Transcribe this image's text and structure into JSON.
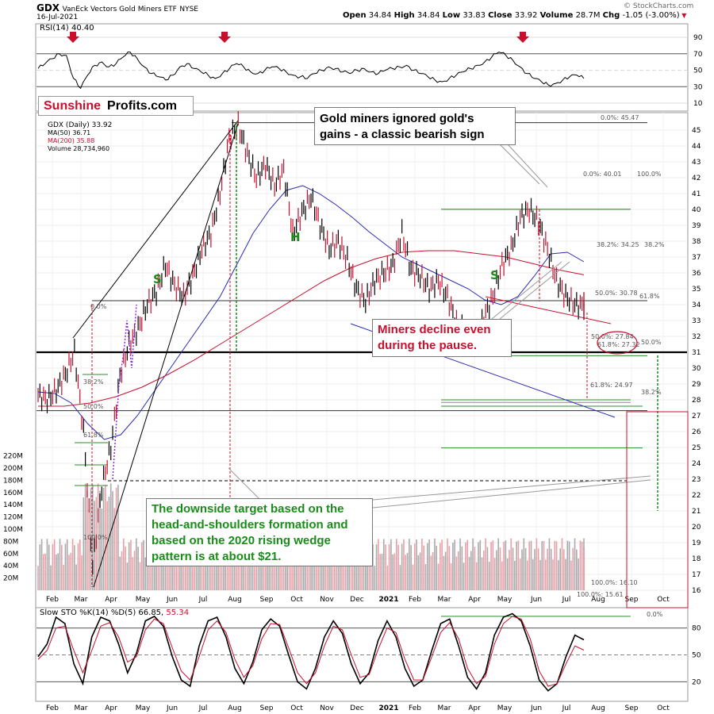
{
  "header": {
    "ticker": "GDX",
    "name": "VanEck Vectors Gold Miners ETF",
    "exchange": "NYSE",
    "date": "16-Jul-2021",
    "quote": {
      "open_label": "Open",
      "open": "34.84",
      "high_label": "High",
      "high": "34.84",
      "low_label": "Low",
      "low": "33.83",
      "close_label": "Close",
      "close": "33.92",
      "volume_label": "Volume",
      "volume": "28.7M",
      "chg_label": "Chg",
      "chg": "-1.05 (-3.00%)"
    },
    "watermark": "© StockCharts.com"
  },
  "logo": {
    "part1": "Sunshine",
    "part2": "Profits.com"
  },
  "legend": {
    "price": "GDX (Daily) 33.92",
    "ma50": "MA(50) 36.71",
    "ma200": "MA(200) 35.88",
    "volume": "Volume 28,734,960"
  },
  "rsi_label": "RSI(14) 40.40",
  "sto_label_prefix": "Slow STO %K(14) %D(5) 66.85,",
  "sto_label_d": "55.34",
  "annotations": {
    "ignored": [
      "Gold miners ignored gold's",
      "gains - a classic bearish sign"
    ],
    "pause": [
      "Miners decline even",
      "during the pause."
    ],
    "target": [
      "The downside target based on the",
      "head-and-shoulders formation and",
      "based on the 2020 rising wedge",
      "pattern is at about $21."
    ],
    "H": "H",
    "S_left": "S",
    "S_right": "S"
  },
  "fib_labels": {
    "upper_0": "0.0%: 45.47",
    "recent_0": "0.0%: 40.01",
    "right_100": "100.0%",
    "f382": "38.2%: 34.25",
    "f382b": "38.2%",
    "f50a": "50.0%: 30.78",
    "f618a": "61.8%",
    "f50b": "50.0%: 27.84",
    "f618b": "61.8%: 27.32",
    "f50r": "50.0%",
    "f618c": "61.8%: 24.97",
    "f382r": "38.2%",
    "f100": "100.0%: 16.10",
    "f100b": "100.0%: 15.61",
    "left_0": "0.0%",
    "left_382": "38.2%",
    "left_50": "50.0%",
    "left_618": "61.8%",
    "left_100": "100.0%",
    "sto_0": "0.0%"
  },
  "colors": {
    "price_up": "#000000",
    "price_down": "#c8102e",
    "ma50": "#2b2bb5",
    "ma200": "#c8102e",
    "fib_green": "#2e8b2e",
    "annot_green": "#1a8c1a",
    "annot_red": "#c8102e",
    "arrow_red": "#c8102e",
    "wedge_blue": "#2b2bb5"
  },
  "chart_data": [
    {
      "type": "line",
      "title": "RSI(14) 40.40",
      "y_ticks": [
        90,
        70,
        50,
        30,
        10
      ],
      "ylim": [
        10,
        95
      ],
      "x_labels": [
        "Feb",
        "Mar",
        "Apr",
        "May",
        "Jun",
        "Jul",
        "Aug",
        "Sep",
        "Oct",
        "Nov",
        "Dec",
        "2021",
        "Feb",
        "Mar",
        "Apr",
        "May",
        "Jun",
        "Jul",
        "Aug",
        "Sep",
        "Oct"
      ],
      "series": [
        {
          "name": "RSI(14)",
          "values": [
            52,
            58,
            64,
            70,
            68,
            40,
            28,
            44,
            56,
            60,
            54,
            58,
            66,
            72,
            64,
            54,
            46,
            42,
            38,
            44,
            54,
            58,
            52,
            48,
            44,
            40,
            46,
            52,
            58,
            54,
            48,
            46,
            50,
            54,
            52,
            48,
            44,
            42,
            40,
            46,
            50,
            54,
            52,
            48,
            46,
            50,
            52,
            48,
            46,
            50,
            52,
            54,
            56,
            50,
            46,
            42,
            38,
            36,
            40,
            44,
            48,
            52,
            56,
            60,
            66,
            72,
            68,
            62,
            54,
            46,
            40,
            36,
            32,
            34,
            38,
            42,
            44,
            40
          ]
        }
      ],
      "markers": [
        "down-arrow at Mar 2020",
        "down-arrow at early Aug 2020",
        "down-arrow at late May 2021"
      ]
    },
    {
      "type": "line",
      "title": "GDX (Daily) 33.92",
      "y_ticks": [
        45,
        44,
        43,
        42,
        41,
        40,
        39,
        38,
        37,
        36,
        35,
        34,
        33,
        32,
        31,
        30,
        29,
        28,
        27,
        26,
        25,
        24,
        23,
        22,
        21,
        20,
        19,
        18,
        17,
        16
      ],
      "volume_ticks": [
        "220M",
        "200M",
        "180M",
        "160M",
        "140M",
        "120M",
        "100M",
        "80M",
        "60M",
        "40M",
        "20M"
      ],
      "x_labels": [
        "Feb",
        "Mar",
        "Apr",
        "May",
        "Jun",
        "Jul",
        "Aug",
        "Sep",
        "Oct",
        "Nov",
        "Dec",
        "2021",
        "Feb",
        "Mar",
        "Apr",
        "May",
        "Jun",
        "Jul",
        "Aug",
        "Sep",
        "Oct"
      ],
      "series": [
        {
          "name": "GDX (Daily) 33.92",
          "values": [
            28.3,
            28.0,
            28.6,
            29.6,
            31.0,
            26.0,
            17.5,
            22.5,
            25.0,
            29.5,
            31.5,
            32.5,
            34.0,
            34.8,
            36.5,
            35.2,
            34.5,
            35.8,
            37.5,
            38.5,
            41.0,
            44.5,
            45.3,
            43.5,
            42.0,
            42.8,
            41.5,
            42.5,
            38.5,
            39.8,
            40.8,
            39.0,
            37.5,
            38.0,
            36.8,
            35.0,
            34.2,
            35.5,
            36.0,
            36.5,
            38.5,
            36.2,
            35.8,
            35.0,
            35.5,
            34.5,
            32.8,
            32.3,
            31.5,
            33.2,
            34.5,
            36.5,
            37.5,
            39.5,
            40.0,
            39.2,
            37.5,
            35.5,
            34.5,
            34.0,
            33.9
          ]
        },
        {
          "name": "MA(50) 36.71",
          "values": [
            28.5,
            28.4,
            27.8,
            26.5,
            25.5,
            25.8,
            27.0,
            28.5,
            30.0,
            31.5,
            33.0,
            34.5,
            36.5,
            38.5,
            40.0,
            41.2,
            41.5,
            41.0,
            40.3,
            39.5,
            38.6,
            37.8,
            37.0,
            36.5,
            36.0,
            35.5,
            35.0,
            34.3,
            34.0,
            34.5,
            35.8,
            37.2,
            37.3,
            36.7
          ]
        },
        {
          "name": "MA(200) 35.88",
          "values": [
            27.6,
            27.6,
            27.8,
            28.2,
            28.8,
            29.6,
            30.5,
            31.5,
            32.5,
            33.5,
            34.5,
            35.5,
            36.3,
            36.9,
            37.3,
            37.4,
            37.4,
            37.2,
            37.0,
            36.6,
            36.2,
            35.88
          ]
        }
      ]
    },
    {
      "type": "line",
      "title": "Slow STO %K(14) %D(5) 66.85, 55.34",
      "y_ticks": [
        80,
        50,
        20
      ],
      "ylim": [
        0,
        100
      ],
      "x_labels": [
        "Feb",
        "Mar",
        "Apr",
        "May",
        "Jun",
        "Jul",
        "Aug",
        "Sep",
        "Oct",
        "Nov",
        "Dec",
        "2021",
        "Feb",
        "Mar",
        "Apr",
        "May",
        "Jun",
        "Jul",
        "Aug",
        "Sep",
        "Oct"
      ],
      "series": [
        {
          "name": "%K(14)",
          "values": [
            48,
            62,
            92,
            85,
            40,
            18,
            70,
            92,
            88,
            62,
            30,
            52,
            88,
            93,
            82,
            48,
            22,
            15,
            60,
            88,
            92,
            70,
            35,
            18,
            42,
            78,
            90,
            82,
            50,
            20,
            12,
            35,
            70,
            88,
            74,
            40,
            18,
            30,
            66,
            88,
            70,
            35,
            15,
            22,
            55,
            85,
            90,
            60,
            25,
            12,
            30,
            72,
            92,
            96,
            88,
            60,
            22,
            10,
            18,
            48,
            72,
            66.85
          ]
        },
        {
          "name": "%D(5)",
          "values": [
            45,
            55,
            80,
            82,
            55,
            30,
            55,
            82,
            86,
            70,
            42,
            48,
            78,
            90,
            85,
            58,
            32,
            22,
            48,
            78,
            88,
            75,
            45,
            25,
            38,
            68,
            85,
            84,
            58,
            30,
            18,
            30,
            60,
            82,
            78,
            50,
            25,
            28,
            56,
            80,
            75,
            45,
            22,
            22,
            48,
            75,
            86,
            68,
            35,
            18,
            26,
            62,
            85,
            93,
            90,
            68,
            32,
            15,
            18,
            40,
            60,
            55.34
          ]
        }
      ]
    }
  ]
}
